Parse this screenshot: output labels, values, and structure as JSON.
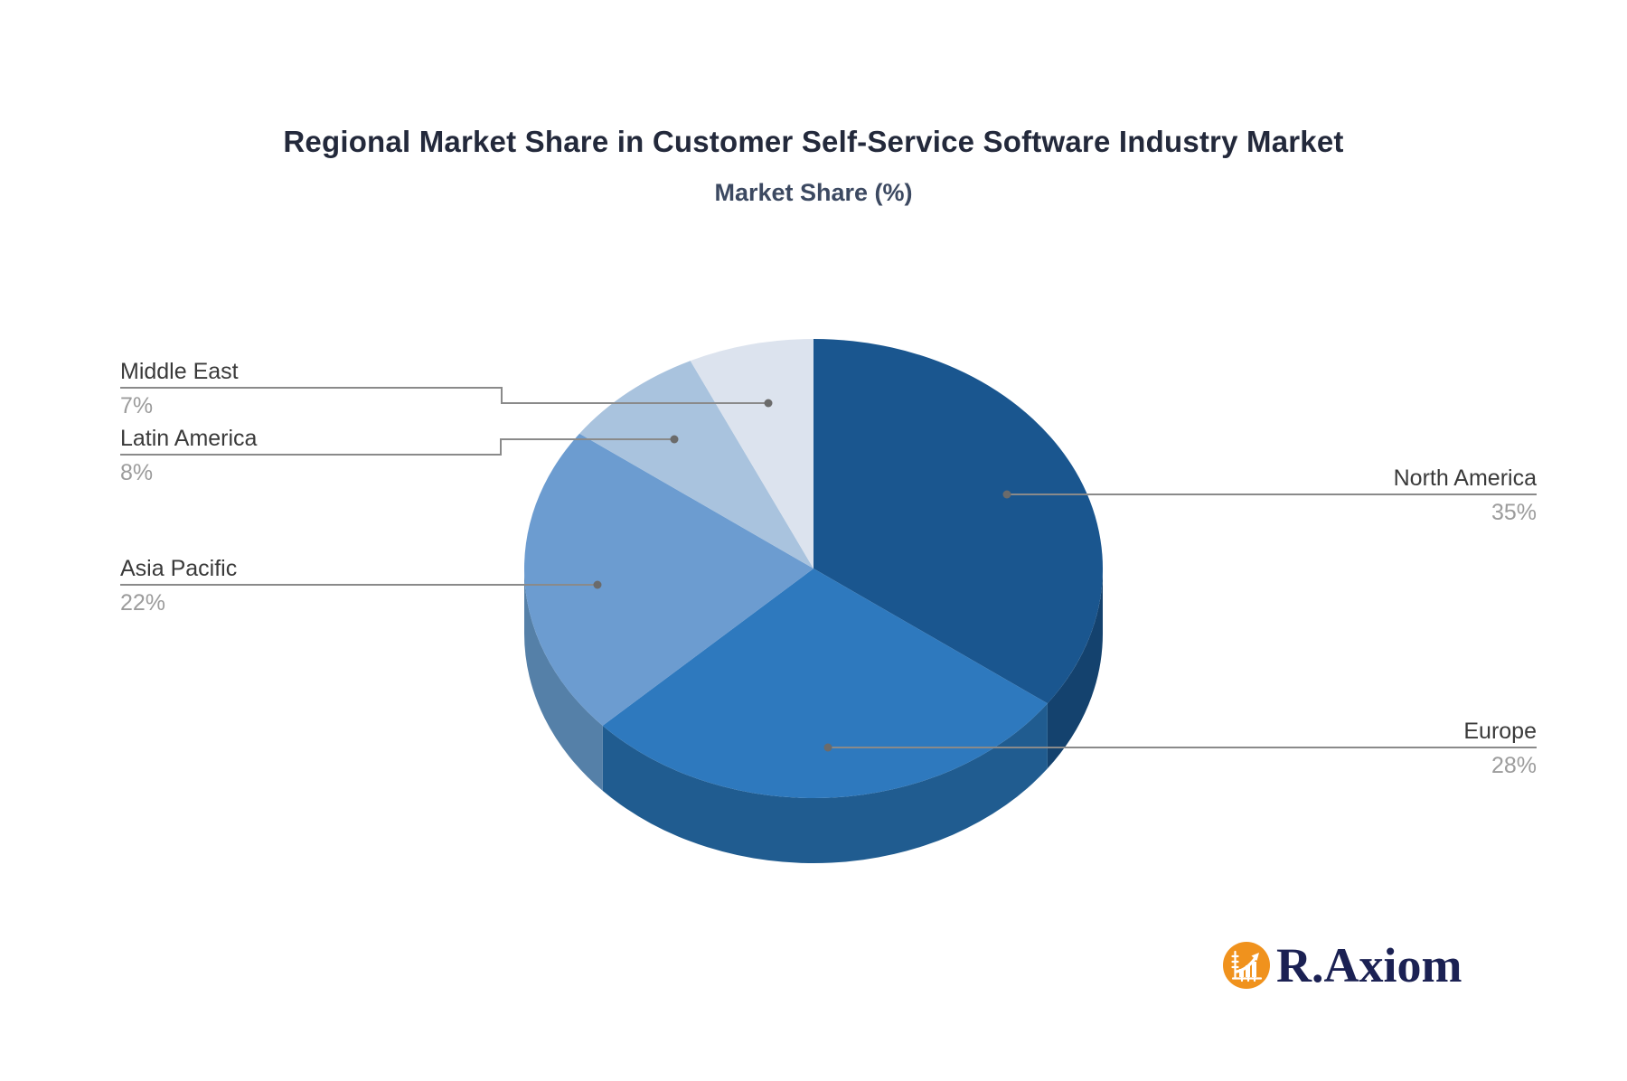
{
  "chart_data": {
    "type": "pie",
    "style": "3d",
    "title": "Regional Market Share in Customer Self-Service Software Industry Market",
    "subtitle": "Market Share (%)",
    "unit": "%",
    "direction": "clockwise",
    "start_angle_deg": 0,
    "legend_position": "none",
    "series": [
      {
        "label": "North America",
        "value": 35,
        "display": "35%",
        "color": "#1A568F",
        "side_color": "#14426E"
      },
      {
        "label": "Europe",
        "value": 28,
        "display": "28%",
        "color": "#2E79BE",
        "side_color": "#205C90"
      },
      {
        "label": "Asia Pacific",
        "value": 22,
        "display": "22%",
        "color": "#6C9CD0",
        "side_color": "#5580A8"
      },
      {
        "label": "Latin America",
        "value": 8,
        "display": "8%",
        "color": "#A9C3DE",
        "side_color": "#87A2BD"
      },
      {
        "label": "Middle East",
        "value": 7,
        "display": "7%",
        "color": "#DCE3EE",
        "side_color": "#B5BFCE"
      }
    ],
    "leader_line_color": "#8A8A8A",
    "leader_dot_color": "#6B6B6B",
    "label_color": "#3A3A3A",
    "value_color": "#9C9C9C"
  },
  "logo": {
    "text": "R.Axiom",
    "icon": "bar-chart-growth-icon",
    "icon_bg_color": "#F0921D",
    "text_color": "#1B2153"
  }
}
